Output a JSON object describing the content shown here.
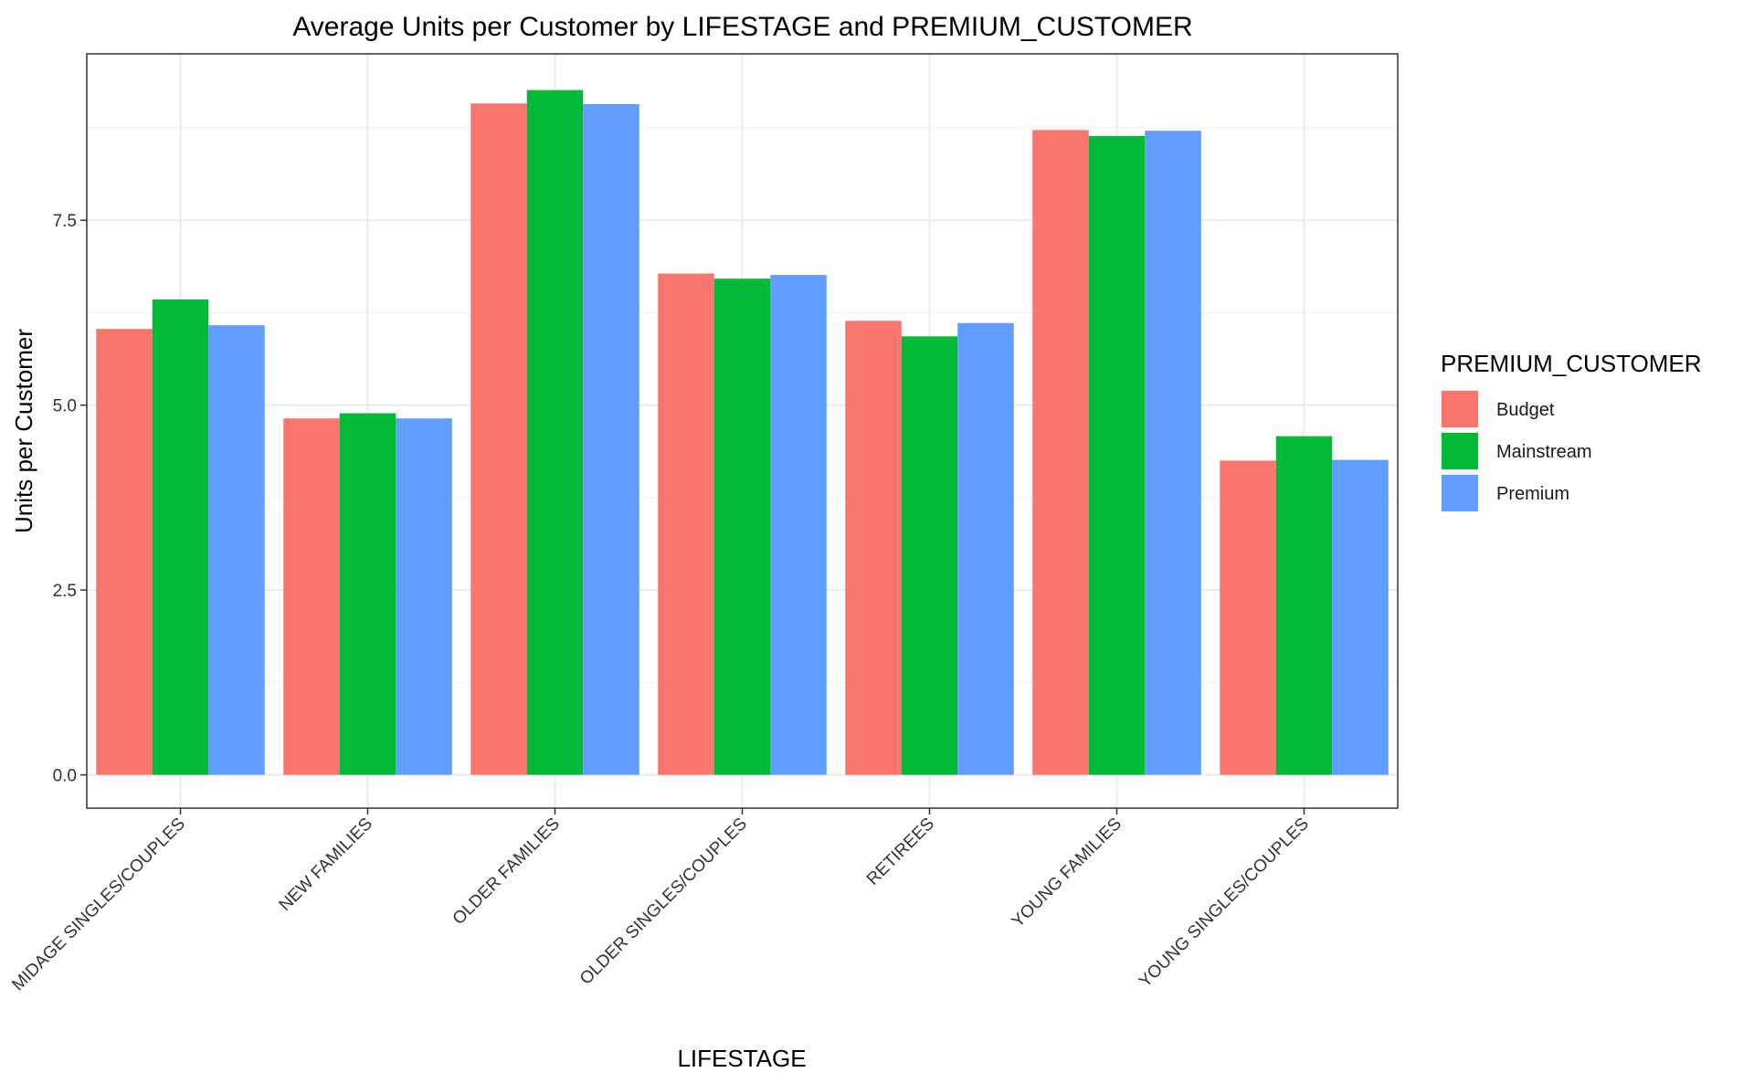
{
  "chart_data": {
    "type": "bar",
    "title": "Average Units per Customer by LIFESTAGE and PREMIUM_CUSTOMER",
    "xlabel": "LIFESTAGE",
    "ylabel": "Units per Customer",
    "ylim": [
      -0.45,
      9.75
    ],
    "yticks": [
      0,
      2.5,
      5,
      7.5
    ],
    "ytick_labels": [
      "0.0",
      "2.5",
      "5.0",
      "7.5"
    ],
    "grid": true,
    "legend_position": "right",
    "legend_title": "PREMIUM_CUSTOMER",
    "categories": [
      "MIDAGE SINGLES/COUPLES",
      "NEW FAMILIES",
      "OLDER FAMILIES",
      "OLDER SINGLES/COUPLES",
      "RETIREES",
      "YOUNG FAMILIES",
      "YOUNG SINGLES/COUPLES"
    ],
    "series": [
      {
        "name": "Budget",
        "color": "#F8766D",
        "values": [
          6.03,
          4.82,
          9.08,
          6.78,
          6.14,
          8.72,
          4.25
        ]
      },
      {
        "name": "Mainstream",
        "color": "#00BA38",
        "values": [
          6.43,
          4.89,
          9.26,
          6.71,
          5.93,
          8.64,
          4.58
        ]
      },
      {
        "name": "Premium",
        "color": "#619CFF",
        "values": [
          6.08,
          4.82,
          9.07,
          6.76,
          6.11,
          8.71,
          4.26
        ]
      }
    ]
  }
}
